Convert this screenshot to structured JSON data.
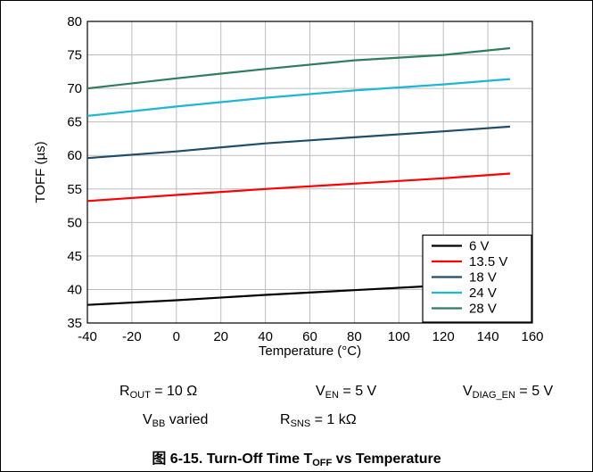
{
  "chart_data": {
    "type": "line",
    "xlabel": "Temperature (°C)",
    "ylabel": "TOFF (µs)",
    "xlim": [
      -40,
      160
    ],
    "ylim": [
      35,
      80
    ],
    "xticks": [
      -40,
      -20,
      0,
      20,
      40,
      60,
      80,
      100,
      120,
      140,
      160
    ],
    "yticks": [
      35,
      40,
      45,
      50,
      55,
      60,
      65,
      70,
      75,
      80
    ],
    "grid": true,
    "legend_position": "bottom-right",
    "series": [
      {
        "name": "6 V",
        "color": "#000000",
        "x": [
          -40,
          0,
          40,
          80,
          120,
          150
        ],
        "y": [
          37.7,
          38.4,
          39.2,
          39.9,
          40.6,
          41.2
        ]
      },
      {
        "name": "13.5 V",
        "color": "#ff0000",
        "x": [
          -40,
          0,
          40,
          80,
          120,
          150
        ],
        "y": [
          53.2,
          54.1,
          55.0,
          55.8,
          56.6,
          57.3
        ]
      },
      {
        "name": "18 V",
        "color": "#1f4e6b",
        "x": [
          -40,
          0,
          40,
          80,
          120,
          150
        ],
        "y": [
          59.6,
          60.6,
          61.8,
          62.7,
          63.6,
          64.3
        ]
      },
      {
        "name": "24 V",
        "color": "#1fb6d4",
        "x": [
          -40,
          0,
          40,
          80,
          120,
          150
        ],
        "y": [
          65.9,
          67.3,
          68.6,
          69.7,
          70.6,
          71.4
        ]
      },
      {
        "name": "28 V",
        "color": "#2e7d5b",
        "x": [
          -40,
          0,
          40,
          80,
          120,
          150
        ],
        "y": [
          70.0,
          71.5,
          72.9,
          74.2,
          75.0,
          76.0
        ]
      }
    ]
  },
  "conditions": {
    "rout": {
      "base": "R",
      "sub": "OUT",
      "rest": " = 10 Ω"
    },
    "ven": {
      "base": "V",
      "sub": "EN",
      "rest": " = 5 V"
    },
    "vdiag": {
      "base": "V",
      "sub": "DIAG_EN",
      "rest": " = 5 V"
    },
    "vbb": {
      "base": "V",
      "sub": "BB",
      "rest": " varied"
    },
    "rsns": {
      "base": "R",
      "sub": "SNS",
      "rest": " = 1 kΩ"
    }
  },
  "caption": {
    "prefix": "图 6-15. Turn-Off Time T",
    "sub": "OFF",
    "suffix": " vs Temperature"
  }
}
